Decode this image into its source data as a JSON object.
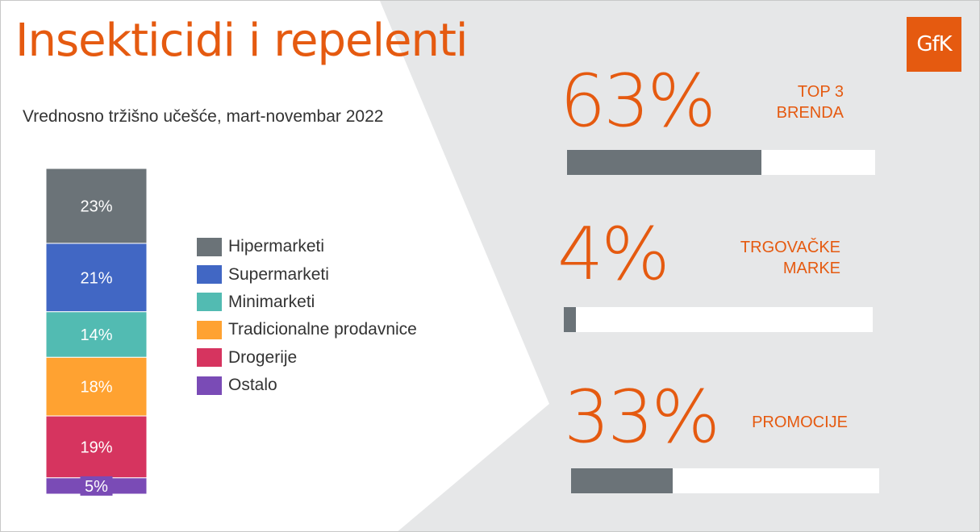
{
  "header": {
    "title": "Insekticidi i repelenti",
    "subtitle": "Vrednosno tržišno učešće, mart-novembar 2022"
  },
  "logo": {
    "text": "GfK",
    "color": "#e55a10"
  },
  "colors": {
    "accent": "#e55a10",
    "background_grey": "#e6e7e8",
    "kpi_bar_fill": "#6b7378",
    "kpi_bar_track": "#ffffff"
  },
  "chart_data": [
    {
      "type": "bar",
      "stacked": true,
      "categories": [
        ""
      ],
      "series": [
        {
          "name": "Hipermarketi",
          "values": [
            23
          ],
          "color": "#6b7378",
          "label": "23%"
        },
        {
          "name": "Supermarketi",
          "values": [
            21
          ],
          "color": "#4167c4",
          "label": "21%"
        },
        {
          "name": "Minimarketi",
          "values": [
            14
          ],
          "color": "#52bbb2",
          "label": "14%"
        },
        {
          "name": "Tradicionalne prodavnice",
          "values": [
            18
          ],
          "color": "#ffa231",
          "label": "18%"
        },
        {
          "name": "Drogerije",
          "values": [
            19
          ],
          "color": "#d6345f",
          "label": "19%"
        },
        {
          "name": "Ostalo",
          "values": [
            5
          ],
          "color": "#7a4bb6",
          "label": "5%"
        }
      ],
      "ylim": [
        0,
        100
      ],
      "legend": "right",
      "grid": false
    },
    {
      "type": "bar",
      "orientation": "horizontal",
      "categories": [
        "TOP 3\nBRENDA",
        "TRGOVAČKE\nMARKE",
        "PROMOCIJE"
      ],
      "values": [
        63,
        4,
        33
      ],
      "labels": [
        "63%",
        "4%",
        "33%"
      ],
      "xlim": [
        0,
        100
      ],
      "grid": false
    }
  ]
}
